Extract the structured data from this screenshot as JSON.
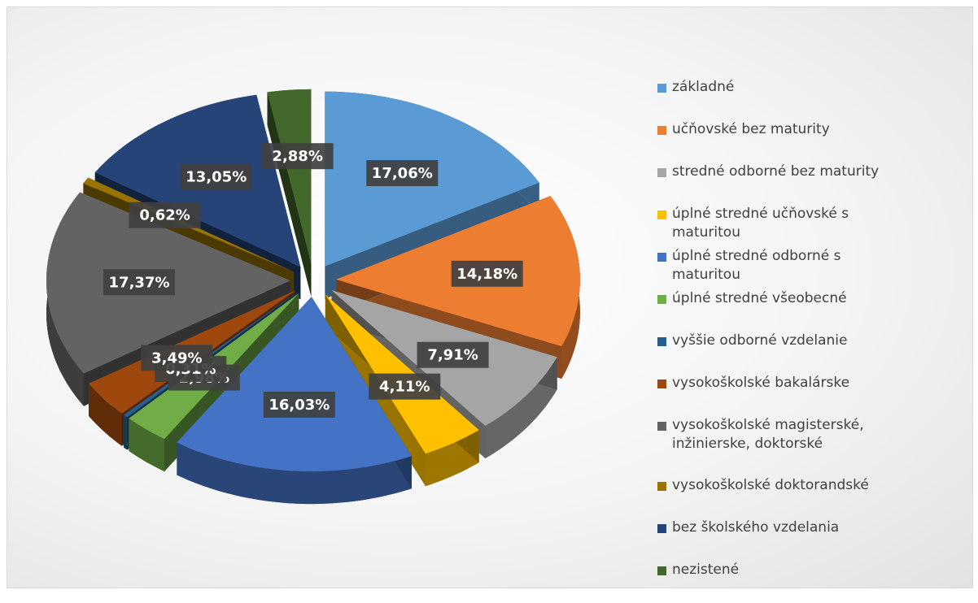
{
  "chart_data": {
    "type": "pie",
    "categories": [
      "základné",
      "učňovské bez maturity",
      "stredné odborné bez maturity",
      "úplné stredné učňovské s maturitou",
      "úplné stredné odborné s maturitou",
      "úplné stredné všeobecné",
      "vyššie odborné vzdelanie",
      "vysokoškolské bakalárske",
      "vysokoškolské magisterské, inžinierske, doktorské",
      "vysokoškolské doktorandské",
      "bez školského vzdelania",
      "nezistené"
    ],
    "values": [
      17.06,
      14.18,
      7.91,
      4.11,
      16.03,
      2.98,
      0.31,
      3.49,
      17.37,
      0.62,
      13.05,
      2.88
    ],
    "value_labels": [
      "17,06%",
      "14,18%",
      "7,91%",
      "4,11%",
      "16,03%",
      "2,98%",
      "0,31%",
      "3,49%",
      "17,37%",
      "0,62%",
      "13,05%",
      "2,88%"
    ],
    "colors": [
      "#5b9bd5",
      "#ed7d31",
      "#a5a5a5",
      "#ffc000",
      "#4472c4",
      "#70ad47",
      "#255e91",
      "#9e480e",
      "#636363",
      "#997300",
      "#264478",
      "#43682b"
    ],
    "legend": "right"
  }
}
